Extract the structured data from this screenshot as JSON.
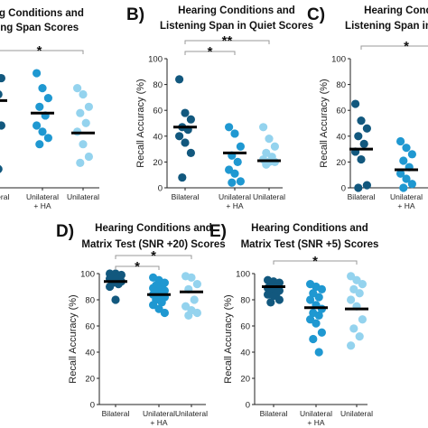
{
  "chart_data": [
    {
      "type": "scatter",
      "panel_label": "",
      "title": [
        "Hearing Conditions and",
        "Reading Span Scores"
      ],
      "ylabel": "",
      "categories": [
        "Bilateral",
        "Unilateral + HA",
        "Unilateral"
      ],
      "ylim": [
        0,
        100
      ],
      "yticks": [],
      "series": [
        {
          "category": "Bilateral",
          "values": [
            92,
            90,
            88,
            80,
            75,
            70,
            60,
            50,
            30,
            15
          ],
          "mean": 70
        },
        {
          "category": "Unilateral + HA",
          "values": [
            92,
            80,
            72,
            65,
            58,
            50,
            45,
            40,
            35
          ],
          "mean": 60
        },
        {
          "category": "Unilateral",
          "values": [
            80,
            75,
            65,
            60,
            52,
            45,
            35,
            25,
            20
          ],
          "mean": 44
        }
      ],
      "significance": [
        {
          "from": "Bilateral",
          "to": "Unilateral",
          "label": "*"
        }
      ]
    },
    {
      "type": "scatter",
      "panel_label": "B)",
      "title": [
        "Hearing Conditions and",
        "Listening Span in Quiet Scores"
      ],
      "ylabel": "Recall Accuracy (%)",
      "categories": [
        "Bilateral",
        "Unilateral + HA",
        "Unilateral"
      ],
      "ylim": [
        0,
        100
      ],
      "yticks": [
        0,
        20,
        40,
        60,
        80,
        100
      ],
      "series": [
        {
          "category": "Bilateral",
          "values": [
            84,
            58,
            53,
            47,
            45,
            40,
            35,
            27,
            8
          ],
          "mean": 47
        },
        {
          "category": "Unilateral + HA",
          "values": [
            47,
            42,
            32,
            25,
            20,
            14,
            11,
            5,
            4
          ],
          "mean": 27
        },
        {
          "category": "Unilateral",
          "values": [
            47,
            38,
            32,
            27,
            24,
            22,
            20,
            20,
            18
          ],
          "mean": 21
        }
      ],
      "significance": [
        {
          "from": "Bilateral",
          "to": "Unilateral + HA",
          "label": "*"
        },
        {
          "from": "Bilateral",
          "to": "Unilateral",
          "label": "**"
        }
      ]
    },
    {
      "type": "scatter",
      "panel_label": "C)",
      "title": [
        "Hearing Conditions and",
        "Listening Span in Noise Scores"
      ],
      "ylabel": "Recall Accuracy (%)",
      "categories": [
        "Bilateral",
        "Unilateral + HA",
        "Unilateral"
      ],
      "ylim": [
        0,
        100
      ],
      "yticks": [
        0,
        20,
        40,
        60,
        80,
        100
      ],
      "series": [
        {
          "category": "Bilateral",
          "values": [
            65,
            52,
            46,
            40,
            34,
            28,
            22,
            2,
            0
          ],
          "mean": 30
        },
        {
          "category": "Unilateral + HA",
          "values": [
            36,
            31,
            26,
            21,
            16,
            11,
            7,
            3,
            0
          ],
          "mean": 14
        },
        {
          "category": "Unilateral",
          "values": [
            30,
            20,
            12,
            8,
            4,
            2
          ],
          "mean": 12
        }
      ],
      "significance": [
        {
          "from": "Bilateral",
          "to": "Unilateral",
          "label": "*"
        }
      ]
    },
    {
      "type": "scatter",
      "panel_label": "D)",
      "title": [
        "Hearing Conditions and",
        "Matrix Test (SNR +20) Scores"
      ],
      "ylabel": "Recall Accuracy (%)",
      "categories": [
        "Bilateral",
        "Unilateral + HA",
        "Unilateral"
      ],
      "ylim": [
        0,
        100
      ],
      "yticks": [
        0,
        20,
        40,
        60,
        80,
        100
      ],
      "series": [
        {
          "category": "Bilateral",
          "values": [
            100,
            100,
            99,
            98,
            97,
            96,
            95,
            94,
            93,
            92,
            90,
            80
          ],
          "mean": 94
        },
        {
          "category": "Unilateral + HA",
          "values": [
            97,
            95,
            93,
            91,
            90,
            89,
            88,
            87,
            86,
            85,
            84,
            83,
            82,
            80,
            78,
            76,
            73,
            70
          ],
          "mean": 84
        },
        {
          "category": "Unilateral",
          "values": [
            98,
            97,
            92,
            88,
            80,
            75,
            72,
            70,
            68
          ],
          "mean": 86
        }
      ],
      "significance": [
        {
          "from": "Bilateral",
          "to": "Unilateral + HA",
          "label": "*"
        },
        {
          "from": "Bilateral",
          "to": "Unilateral",
          "label": "*"
        }
      ]
    },
    {
      "type": "scatter",
      "panel_label": "E)",
      "title": [
        "Hearing Conditions and",
        "Matrix Test (SNR +5) Scores"
      ],
      "ylabel": "Recall Accuracy (%)",
      "categories": [
        "Bilateral",
        "Unilateral + HA",
        "Unilateral"
      ],
      "ylim": [
        0,
        100
      ],
      "yticks": [
        0,
        20,
        40,
        60,
        80,
        100
      ],
      "series": [
        {
          "category": "Bilateral",
          "values": [
            95,
            94,
            93,
            92,
            90,
            89,
            88,
            87,
            86,
            85,
            84,
            83,
            80,
            78
          ],
          "mean": 90
        },
        {
          "category": "Unilateral + HA",
          "values": [
            92,
            90,
            88,
            85,
            82,
            80,
            76,
            73,
            70,
            68,
            65,
            62,
            55,
            50,
            40
          ],
          "mean": 74
        },
        {
          "category": "Unilateral",
          "values": [
            98,
            95,
            92,
            88,
            85,
            80,
            75,
            65,
            58,
            52,
            45
          ],
          "mean": 73
        }
      ],
      "significance": [
        {
          "from": "Bilateral",
          "to": "Unilateral",
          "label": "*"
        }
      ]
    }
  ],
  "x_tick_labels": [
    [
      "Bilateral"
    ],
    [
      "Unilateral",
      "+ HA"
    ],
    [
      "Unilateral"
    ]
  ],
  "colors": {
    "Bilateral": "#12587e",
    "Unilateral + HA": "#1f98d1",
    "Unilateral": "#94d3ee",
    "mean_line": "#000000",
    "axis": "#222222"
  }
}
